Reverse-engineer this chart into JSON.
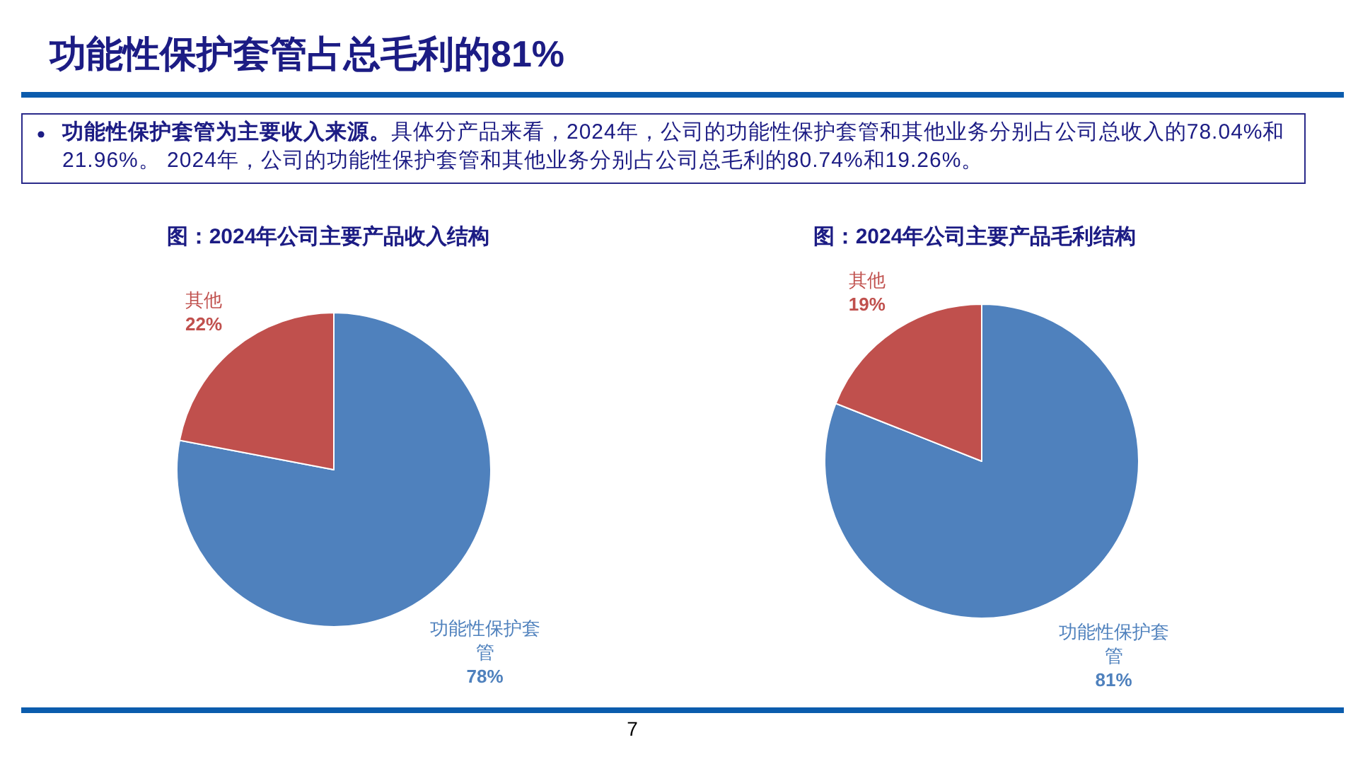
{
  "chart_data": [
    {
      "type": "other",
      "title": "功能性保护套管占总毛利的81%",
      "annotations": [
        "功能性保护套管为主要收入来源。",
        "具体分产品来看，2024年，公司的功能性保护套管和其他业务分别占公司总收入的78.04%和21.96%。 2024年，公司的功能性保护套管和其他业务分别占公司总毛利的80.74%和19.26%。",
        "7"
      ]
    },
    {
      "type": "pie",
      "title": "图：2024年公司主要产品收入结构",
      "categories": [
        "功能性保护套管",
        "其他"
      ],
      "values": [
        78,
        22
      ],
      "colors": [
        "#4f81bd",
        "#c0504d"
      ],
      "value_labels": [
        "78%",
        "22%"
      ]
    },
    {
      "type": "pie",
      "title": "图：2024年公司主要产品毛利结构",
      "categories": [
        "功能性保护套管",
        "其他"
      ],
      "values": [
        81,
        19
      ],
      "colors": [
        "#4f81bd",
        "#c0504d"
      ],
      "value_labels": [
        "81%",
        "19%"
      ]
    }
  ]
}
